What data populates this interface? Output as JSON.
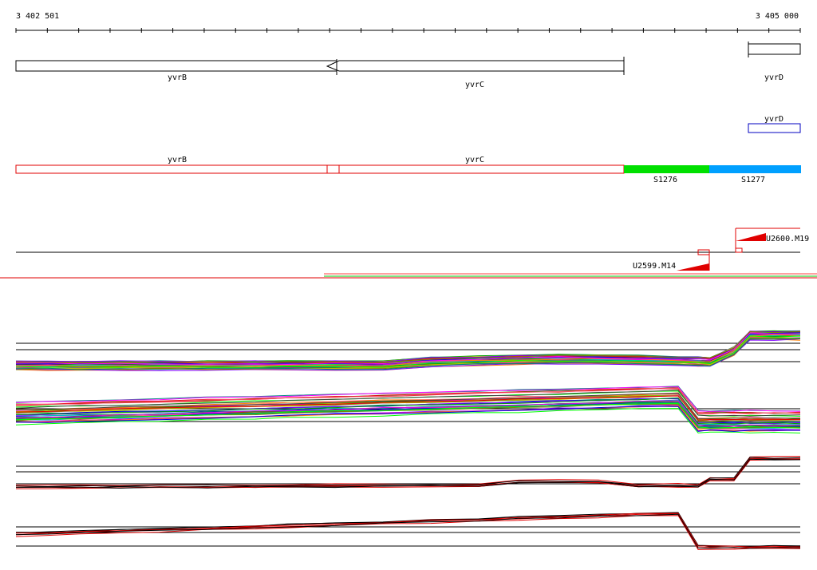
{
  "ruler": {
    "start_label": "3 402 501",
    "end_label": "3 405 000"
  },
  "genes": {
    "annotated": {
      "yvrB": "yvrB",
      "yvrC": "yvrC",
      "yvrD": "yvrD"
    },
    "other_strand": {
      "yvrD": "yvrD"
    },
    "transcribed": {
      "yvrB": "yvrB",
      "yvrC": "yvrC"
    }
  },
  "segments": [
    {
      "label": "S1276",
      "color": "#00e000"
    },
    {
      "label": "S1277",
      "color": "#00a0ff"
    }
  ],
  "promoters": {
    "upper": "U2600.M19",
    "lower": "U2599.M14"
  },
  "colors": {
    "feature_red": "#e00000",
    "other_strand_blue": "#0000c0"
  }
}
